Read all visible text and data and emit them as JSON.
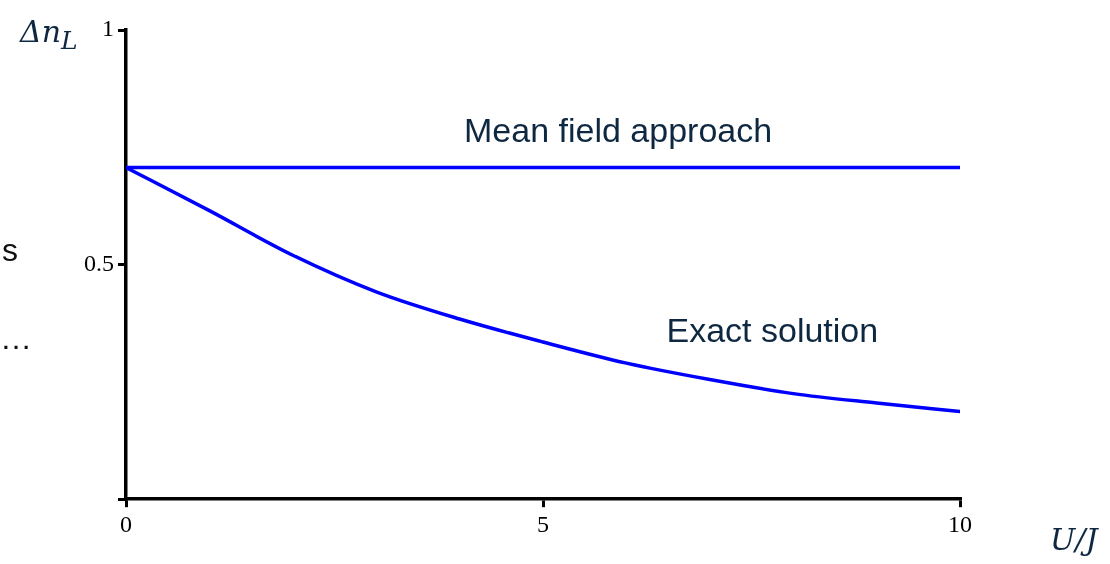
{
  "chart_data": {
    "type": "line",
    "xlabel": "U/J",
    "ylabel": "Δn$_{L}$",
    "annotations": [
      "s",
      "…"
    ],
    "xlim": [
      0,
      10
    ],
    "xticks": [
      0,
      5,
      10
    ],
    "ylim": [
      0,
      1
    ],
    "yticks": [
      {
        "value": 0,
        "label": null
      },
      0.5,
      1
    ],
    "grid": false,
    "legend": false,
    "marker": "none",
    "line_style": "solid",
    "series": [
      {
        "name": "Mean field approach",
        "color": "#0000ff",
        "x": [
          0,
          10
        ],
        "values": [
          0.707,
          0.707
        ]
      },
      {
        "name": "Exact solution",
        "color": "#0000ff",
        "x": [
          0,
          1,
          2,
          3,
          4,
          5,
          6,
          7,
          8,
          9,
          10
        ],
        "values": [
          0.707,
          0.615,
          0.52,
          0.442,
          0.384,
          0.335,
          0.29,
          0.255,
          0.225,
          0.205,
          0.187
        ]
      }
    ]
  }
}
